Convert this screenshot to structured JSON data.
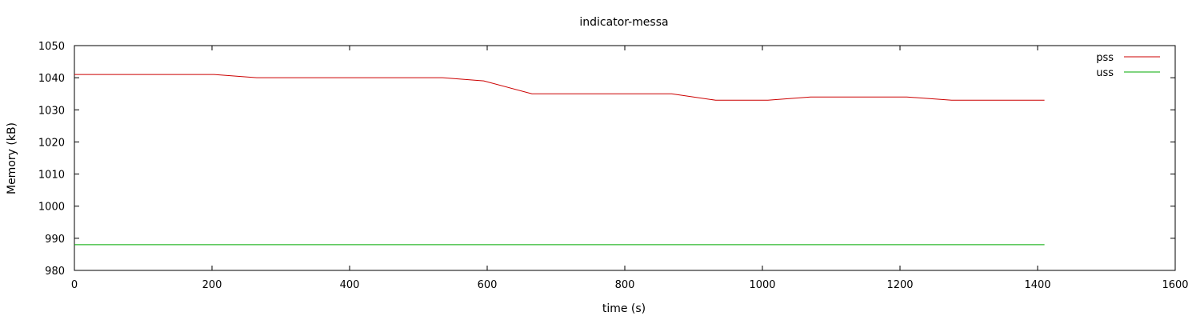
{
  "chart_data": {
    "type": "line",
    "title": "indicator-messa",
    "xlabel": "time (s)",
    "ylabel": "Memory (kB)",
    "xlim": [
      0,
      1600
    ],
    "ylim": [
      980,
      1050
    ],
    "xticks": [
      0,
      200,
      400,
      600,
      800,
      1000,
      1200,
      1400,
      1600
    ],
    "yticks": [
      980,
      990,
      1000,
      1010,
      1020,
      1030,
      1040,
      1050
    ],
    "grid": false,
    "legend_position": "top-right",
    "series": [
      {
        "name": "pss",
        "color": "#cc0000",
        "x": [
          0,
          203,
          265,
          535,
          595,
          665,
          868,
          932,
          1008,
          1070,
          1210,
          1275,
          1410
        ],
        "y": [
          1041,
          1041,
          1040,
          1040,
          1039,
          1035,
          1035,
          1033,
          1033,
          1034,
          1034,
          1033,
          1033
        ]
      },
      {
        "name": "uss",
        "color": "#00aa00",
        "x": [
          0,
          1410
        ],
        "y": [
          988,
          988
        ]
      }
    ]
  }
}
